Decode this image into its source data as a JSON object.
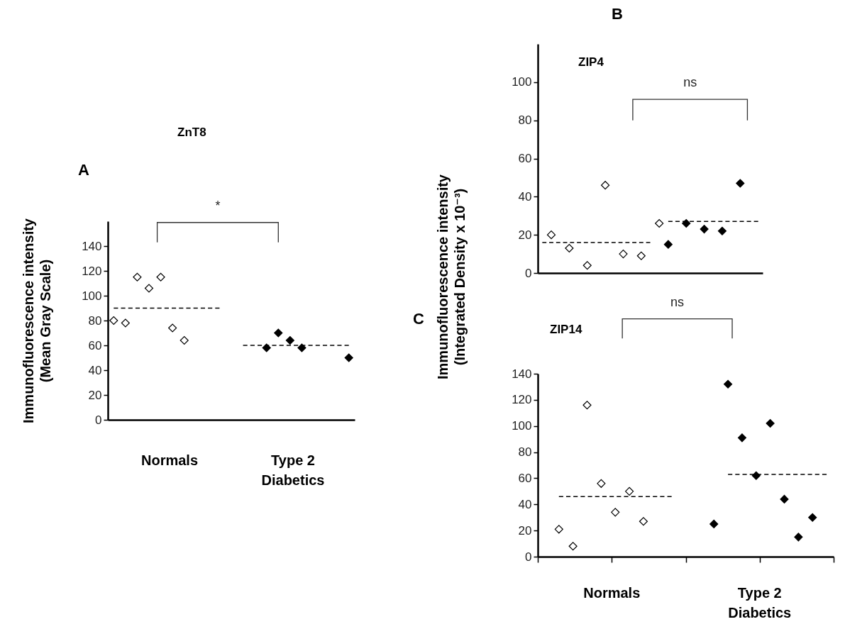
{
  "chart_data": [
    {
      "type": "scatter",
      "title": "ZnT8",
      "ylabel": "Immunofluorescence intensity\n(Mean Gray Scale)",
      "annotations": [
        "A",
        "*",
        "Normals",
        "Type 2\nDiabetics"
      ],
      "categories": [
        null,
        null,
        null,
        null,
        null,
        null,
        null,
        null,
        null,
        null,
        null,
        null,
        null,
        null,
        null,
        null,
        null,
        null,
        null,
        null,
        null
      ],
      "ylim": [
        0,
        160
      ],
      "yticks": [
        0,
        20,
        40,
        60,
        80,
        100,
        120,
        140
      ],
      "tick_labels": "y",
      "series": [
        {
          "color": "#ffffff",
          "marker": "diamond",
          "values": [
            80,
            78,
            115,
            106,
            115,
            74,
            64,
            null,
            null,
            null,
            null,
            null,
            null,
            null,
            null,
            null,
            null,
            null,
            null,
            null,
            null
          ]
        },
        {
          "color": "#000000",
          "marker": "diamond",
          "values": [
            null,
            null,
            null,
            null,
            null,
            null,
            null,
            null,
            null,
            null,
            null,
            null,
            null,
            58,
            70,
            64,
            58,
            null,
            null,
            null,
            50
          ]
        },
        {
          "type": "line",
          "color": "#000000",
          "line_style": "dashed",
          "values": [
            90,
            90,
            90,
            90,
            90,
            90,
            90,
            90,
            90,
            90,
            null,
            null,
            null,
            null,
            null,
            null,
            null,
            null,
            null,
            null,
            null
          ]
        },
        {
          "type": "line",
          "color": "#000000",
          "line_style": "dashed",
          "values": [
            null,
            null,
            null,
            null,
            null,
            null,
            null,
            null,
            null,
            null,
            null,
            60,
            60,
            60,
            60,
            60,
            60,
            60,
            60,
            60,
            60
          ]
        }
      ]
    },
    {
      "type": "scatter",
      "title": "ZIP4",
      "annotations": [
        "B",
        "ns"
      ],
      "categories": [
        null,
        null,
        null,
        null,
        null,
        null,
        null,
        null,
        null,
        null,
        null,
        null,
        null,
        null,
        null,
        null,
        null,
        null,
        null,
        null,
        null,
        null,
        null,
        null,
        null
      ],
      "ylim": [
        0,
        120
      ],
      "yticks": [
        0,
        20,
        40,
        60,
        80,
        100
      ],
      "tick_labels": "y",
      "series": [
        {
          "color": "#ffffff",
          "marker": "diamond",
          "values": [
            null,
            20,
            null,
            13,
            null,
            4,
            null,
            46,
            null,
            10,
            null,
            9,
            null,
            26,
            null,
            null,
            null,
            null,
            null,
            null,
            null,
            null,
            null,
            null,
            null
          ]
        },
        {
          "color": "#000000",
          "marker": "diamond",
          "values": [
            null,
            null,
            null,
            null,
            null,
            null,
            null,
            null,
            null,
            null,
            null,
            null,
            null,
            null,
            15,
            null,
            26,
            null,
            23,
            null,
            22,
            null,
            47,
            null,
            null
          ]
        },
        {
          "type": "line",
          "color": "#000000",
          "line_style": "dashed",
          "values": [
            16,
            16,
            16,
            16,
            16,
            16,
            16,
            16,
            16,
            16,
            16,
            16,
            16,
            null,
            null,
            null,
            null,
            null,
            null,
            null,
            null,
            null,
            null,
            null,
            null
          ]
        },
        {
          "type": "line",
          "color": "#000000",
          "line_style": "dashed",
          "values": [
            null,
            null,
            null,
            null,
            null,
            null,
            null,
            null,
            null,
            null,
            null,
            null,
            null,
            null,
            27,
            27,
            27,
            27,
            27,
            27,
            27,
            27,
            27,
            27,
            27
          ]
        }
      ]
    },
    {
      "type": "scatter",
      "title": "ZIP14",
      "ylabel": "Immunofluorescence intensity\n(Integrated Density x 10⁻³)",
      "annotations": [
        "C",
        "ns",
        "Normals",
        "Type 2\nDiabetics"
      ],
      "categories": [
        null,
        null,
        null,
        null,
        null,
        null,
        null,
        null,
        null,
        null,
        null,
        null,
        null,
        null,
        null,
        null,
        null,
        null,
        null,
        null,
        null
      ],
      "ylim": [
        0,
        140
      ],
      "yticks": [
        0,
        20,
        40,
        60,
        80,
        100,
        120,
        140
      ],
      "tick_labels": "y",
      "series": [
        {
          "color": "#ffffff",
          "marker": "diamond",
          "values": [
            null,
            21,
            8,
            116,
            56,
            34,
            50,
            27,
            null,
            null,
            null,
            null,
            null,
            null,
            null,
            null,
            null,
            null,
            null,
            null,
            null
          ]
        },
        {
          "color": "#000000",
          "marker": "diamond",
          "values": [
            null,
            null,
            null,
            null,
            null,
            null,
            null,
            null,
            null,
            null,
            null,
            null,
            25,
            132,
            91,
            62,
            102,
            44,
            15,
            30,
            null
          ]
        },
        {
          "type": "line",
          "color": "#000000",
          "line_style": "dashed",
          "values": [
            null,
            46,
            46,
            46,
            46,
            46,
            46,
            46,
            46,
            46,
            null,
            null,
            null,
            null,
            null,
            null,
            null,
            null,
            null,
            null,
            null
          ]
        },
        {
          "type": "line",
          "color": "#000000",
          "line_style": "dashed",
          "values": [
            null,
            null,
            null,
            null,
            null,
            null,
            null,
            null,
            null,
            null,
            null,
            null,
            null,
            63,
            63,
            63,
            63,
            63,
            63,
            63,
            63
          ]
        }
      ]
    }
  ]
}
